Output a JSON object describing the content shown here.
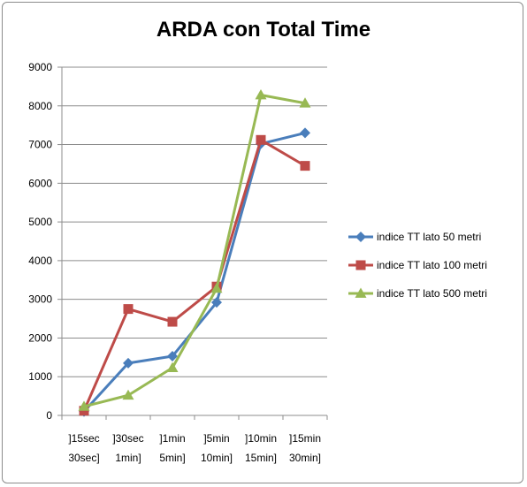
{
  "chart_data": {
    "type": "line",
    "title": "ARDA con Total Time",
    "xlabel": "",
    "ylabel": "",
    "ylim": [
      0,
      9000
    ],
    "y_ticks": [
      "0",
      "1000",
      "2000",
      "3000",
      "4000",
      "5000",
      "6000",
      "7000",
      "8000",
      "9000"
    ],
    "categories": [
      [
        "]15sec",
        "30sec]"
      ],
      [
        "]30sec",
        "1min]"
      ],
      [
        "]1min",
        "5min]"
      ],
      [
        "]5min",
        "10min]"
      ],
      [
        "]10min",
        "15min]"
      ],
      [
        "]15min",
        "30min]"
      ]
    ],
    "grid": true,
    "legend_position": "right",
    "series": [
      {
        "name": "indice TT lato 50 metri",
        "color": "#4a7ebb",
        "marker": "diamond",
        "values": [
          100,
          1350,
          1530,
          2920,
          7020,
          7300
        ]
      },
      {
        "name": "indice TT lato 100 metri",
        "color": "#be4b48",
        "marker": "square",
        "values": [
          120,
          2750,
          2420,
          3330,
          7120,
          6450
        ]
      },
      {
        "name": "indice TT lato 500 metri",
        "color": "#98b954",
        "marker": "triangle",
        "values": [
          230,
          520,
          1230,
          3280,
          8280,
          8070
        ]
      }
    ]
  }
}
